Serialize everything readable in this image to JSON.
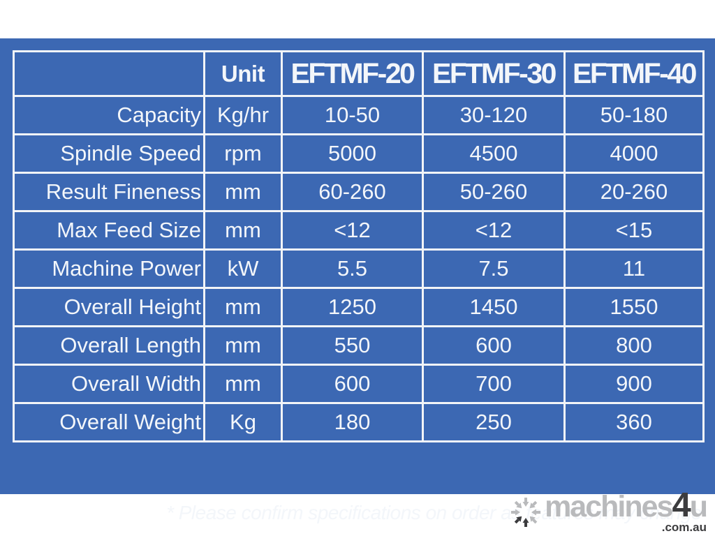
{
  "page": {
    "band_color": "#3c68b3",
    "gridline_color": "#f2f4f7",
    "text_color": "#f3f6fa"
  },
  "table": {
    "columns": [
      "",
      "Unit",
      "EFTMF-20",
      "EFTMF-30",
      "EFTMF-40"
    ],
    "rows": [
      {
        "label": "Capacity",
        "unit": "Kg/hr",
        "values": [
          "10-50",
          "30-120",
          "50-180"
        ]
      },
      {
        "label": "Spindle Speed",
        "unit": "rpm",
        "values": [
          "5000",
          "4500",
          "4000"
        ]
      },
      {
        "label": "Result Fineness",
        "unit": "mm",
        "values": [
          "60-260",
          "50-260",
          "20-260"
        ]
      },
      {
        "label": "Max Feed Size",
        "unit": "mm",
        "values": [
          "<12",
          "<12",
          "<15"
        ]
      },
      {
        "label": "Machine Power",
        "unit": "kW",
        "values": [
          "5.5",
          "7.5",
          "11"
        ]
      },
      {
        "label": "Overall Height",
        "unit": "mm",
        "values": [
          "1250",
          "1450",
          "1550"
        ]
      },
      {
        "label": "Overall Length",
        "unit": "mm",
        "values": [
          "550",
          "600",
          "800"
        ]
      },
      {
        "label": "Overall Width",
        "unit": "mm",
        "values": [
          "600",
          "700",
          "900"
        ]
      },
      {
        "label": "Overall Weight",
        "unit": "Kg",
        "values": [
          "180",
          "250",
          "360"
        ]
      }
    ]
  },
  "footnote": "* Please confirm specifications on order as features may change",
  "logo": {
    "brand": "machines",
    "four": "4",
    "u": "u",
    "domain": ".com.au",
    "icon": "converging-arrows-asterisk-icon",
    "light_color": "#b9babc",
    "dark_color": "#3c3c3e"
  }
}
